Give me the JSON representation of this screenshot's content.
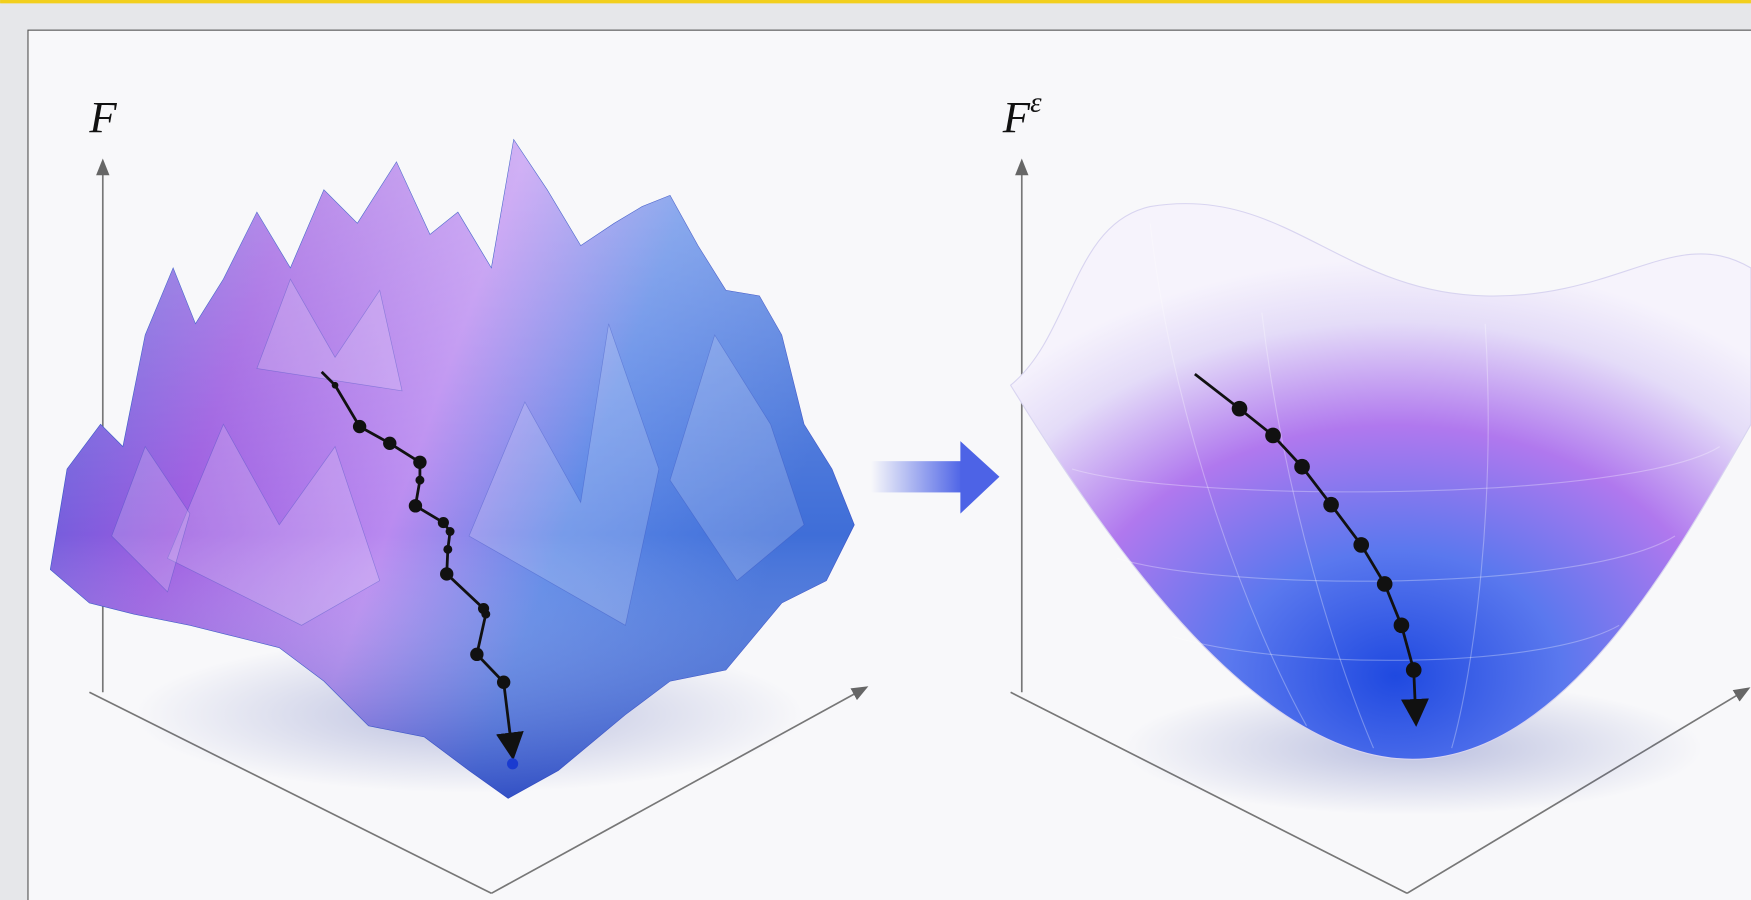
{
  "panels": [
    {
      "label": "F"
    },
    {
      "label": "F",
      "superscript": "ε"
    }
  ]
}
